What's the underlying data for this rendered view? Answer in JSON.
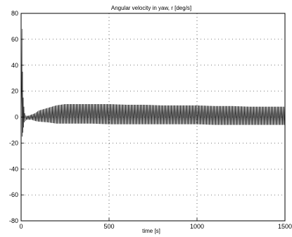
{
  "chart_data": {
    "type": "line",
    "title": "Angular velocity in yaw, r  [deg/s]",
    "xlabel": "time   [s]",
    "ylabel": "",
    "xlim": [
      0,
      1500
    ],
    "ylim": [
      -80,
      80
    ],
    "xticks": [
      0,
      500,
      1000,
      1500
    ],
    "yticks": [
      -80,
      -60,
      -40,
      -20,
      0,
      20,
      40,
      60,
      80
    ],
    "grid": true,
    "grid_style": "dotted",
    "line_color": "#000000",
    "series": [
      {
        "name": "",
        "description_points": {
          "x": [
            0,
            5,
            10,
            15,
            20,
            30,
            40,
            60,
            80,
            100,
            150,
            200,
            250,
            300,
            350,
            400,
            500,
            600,
            700,
            800,
            900,
            1000,
            1100,
            1200,
            1300,
            1400,
            1500
          ],
          "upper_envelope": [
            0,
            68,
            30,
            8,
            2,
            1,
            1,
            2,
            3,
            5,
            7,
            9,
            10,
            10,
            10,
            10,
            10,
            9.5,
            9.5,
            9,
            9,
            9,
            8.5,
            8.5,
            8,
            8,
            8
          ],
          "lower_envelope": [
            0,
            -15,
            -12,
            -8,
            -4,
            -2,
            -2,
            -2,
            -3,
            -3.5,
            -4,
            -5,
            -5,
            -5,
            -5,
            -5,
            -5.5,
            -5.5,
            -5.5,
            -5.5,
            -5.5,
            -5.5,
            -6,
            -6,
            -6,
            -6,
            -6
          ]
        }
      }
    ]
  }
}
